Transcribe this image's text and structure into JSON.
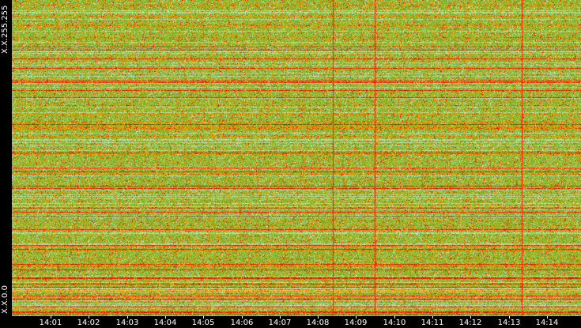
{
  "y_axis": {
    "top_label": "X.X.255.255",
    "bottom_label": "X.X.0.0"
  },
  "x_axis": {
    "labels": [
      "14:01",
      "14:02",
      "14:03",
      "14:04",
      "14:05",
      "14:06",
      "14:07",
      "14:08",
      "14:09",
      "14:10",
      "14:11",
      "14:12",
      "14:13",
      "14:14"
    ]
  },
  "colors": {
    "background": "#000000",
    "green": "#7fb52a",
    "light_green": "#a8d36a",
    "pale_cyan": "#b6e4d4",
    "orange": "#e8a000",
    "red": "#ff1a00",
    "dark_red": "#c00000",
    "text": "#ffffff"
  }
}
